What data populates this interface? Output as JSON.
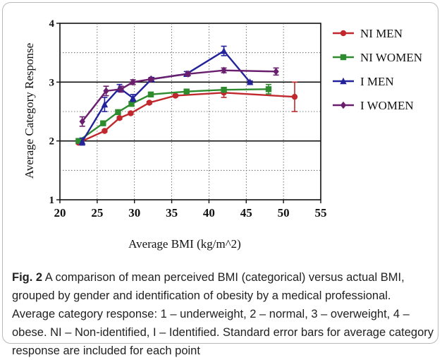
{
  "chart_data": {
    "type": "line",
    "xlabel": "Average BMI (kg/m^2)",
    "ylabel": "Average Category Response",
    "xlim": [
      20,
      55
    ],
    "ylim": [
      1,
      4
    ],
    "xticks": [
      "20",
      "25",
      "30",
      "35",
      "40",
      "45",
      "50",
      "55"
    ],
    "yticks": [
      "1",
      "2",
      "3",
      "4"
    ],
    "grid": true,
    "legend_position": "right",
    "series": [
      {
        "name": "NI MEN",
        "color": "#c0282d",
        "marker": "circle",
        "x": [
          22.5,
          26,
          28,
          29.5,
          32,
          35.5,
          42,
          51.5
        ],
        "y": [
          1.97,
          2.17,
          2.39,
          2.47,
          2.65,
          2.77,
          2.82,
          2.75
        ],
        "err": [
          0.02,
          0.02,
          0.02,
          0.02,
          0.02,
          0.02,
          0.08,
          0.25
        ]
      },
      {
        "name": "NI WOMEN",
        "color": "#2e8b2e",
        "marker": "square",
        "x": [
          22.5,
          25.8,
          27.8,
          29.6,
          32.2,
          37,
          42,
          48
        ],
        "y": [
          2.0,
          2.3,
          2.49,
          2.63,
          2.79,
          2.84,
          2.87,
          2.88
        ],
        "err": [
          0.02,
          0.02,
          0.02,
          0.02,
          0.02,
          0.02,
          0.03,
          0.08
        ]
      },
      {
        "name": "I MEN",
        "color": "#22229a",
        "marker": "triangle",
        "x": [
          23,
          26,
          28,
          29.8,
          32.3,
          37,
          42,
          45.5
        ],
        "y": [
          1.99,
          2.62,
          2.9,
          2.73,
          3.05,
          3.14,
          3.53,
          3.0
        ],
        "err": [
          0.06,
          0.12,
          0.06,
          0.06,
          0.03,
          0.04,
          0.08,
          0.02
        ]
      },
      {
        "name": "I WOMEN",
        "color": "#6a1f6e",
        "marker": "diamond",
        "x": [
          23,
          26.2,
          28.2,
          29.8,
          32.2,
          37.2,
          42,
          49
        ],
        "y": [
          2.33,
          2.85,
          2.88,
          3.0,
          3.05,
          3.14,
          3.2,
          3.18
        ],
        "err": [
          0.08,
          0.08,
          0.05,
          0.04,
          0.02,
          0.03,
          0.04,
          0.06
        ]
      }
    ]
  },
  "caption": {
    "label": "Fig. 2",
    "text": " A comparison of mean perceived BMI (categorical) versus actual BMI, grouped by gender and identification of obesity by a medical professional. Average category response: 1 – underweight, 2 – normal, 3 – overweight, 4 – obese. NI – Non-identified, I – Identified. Standard error bars for average category response are included for each point"
  }
}
